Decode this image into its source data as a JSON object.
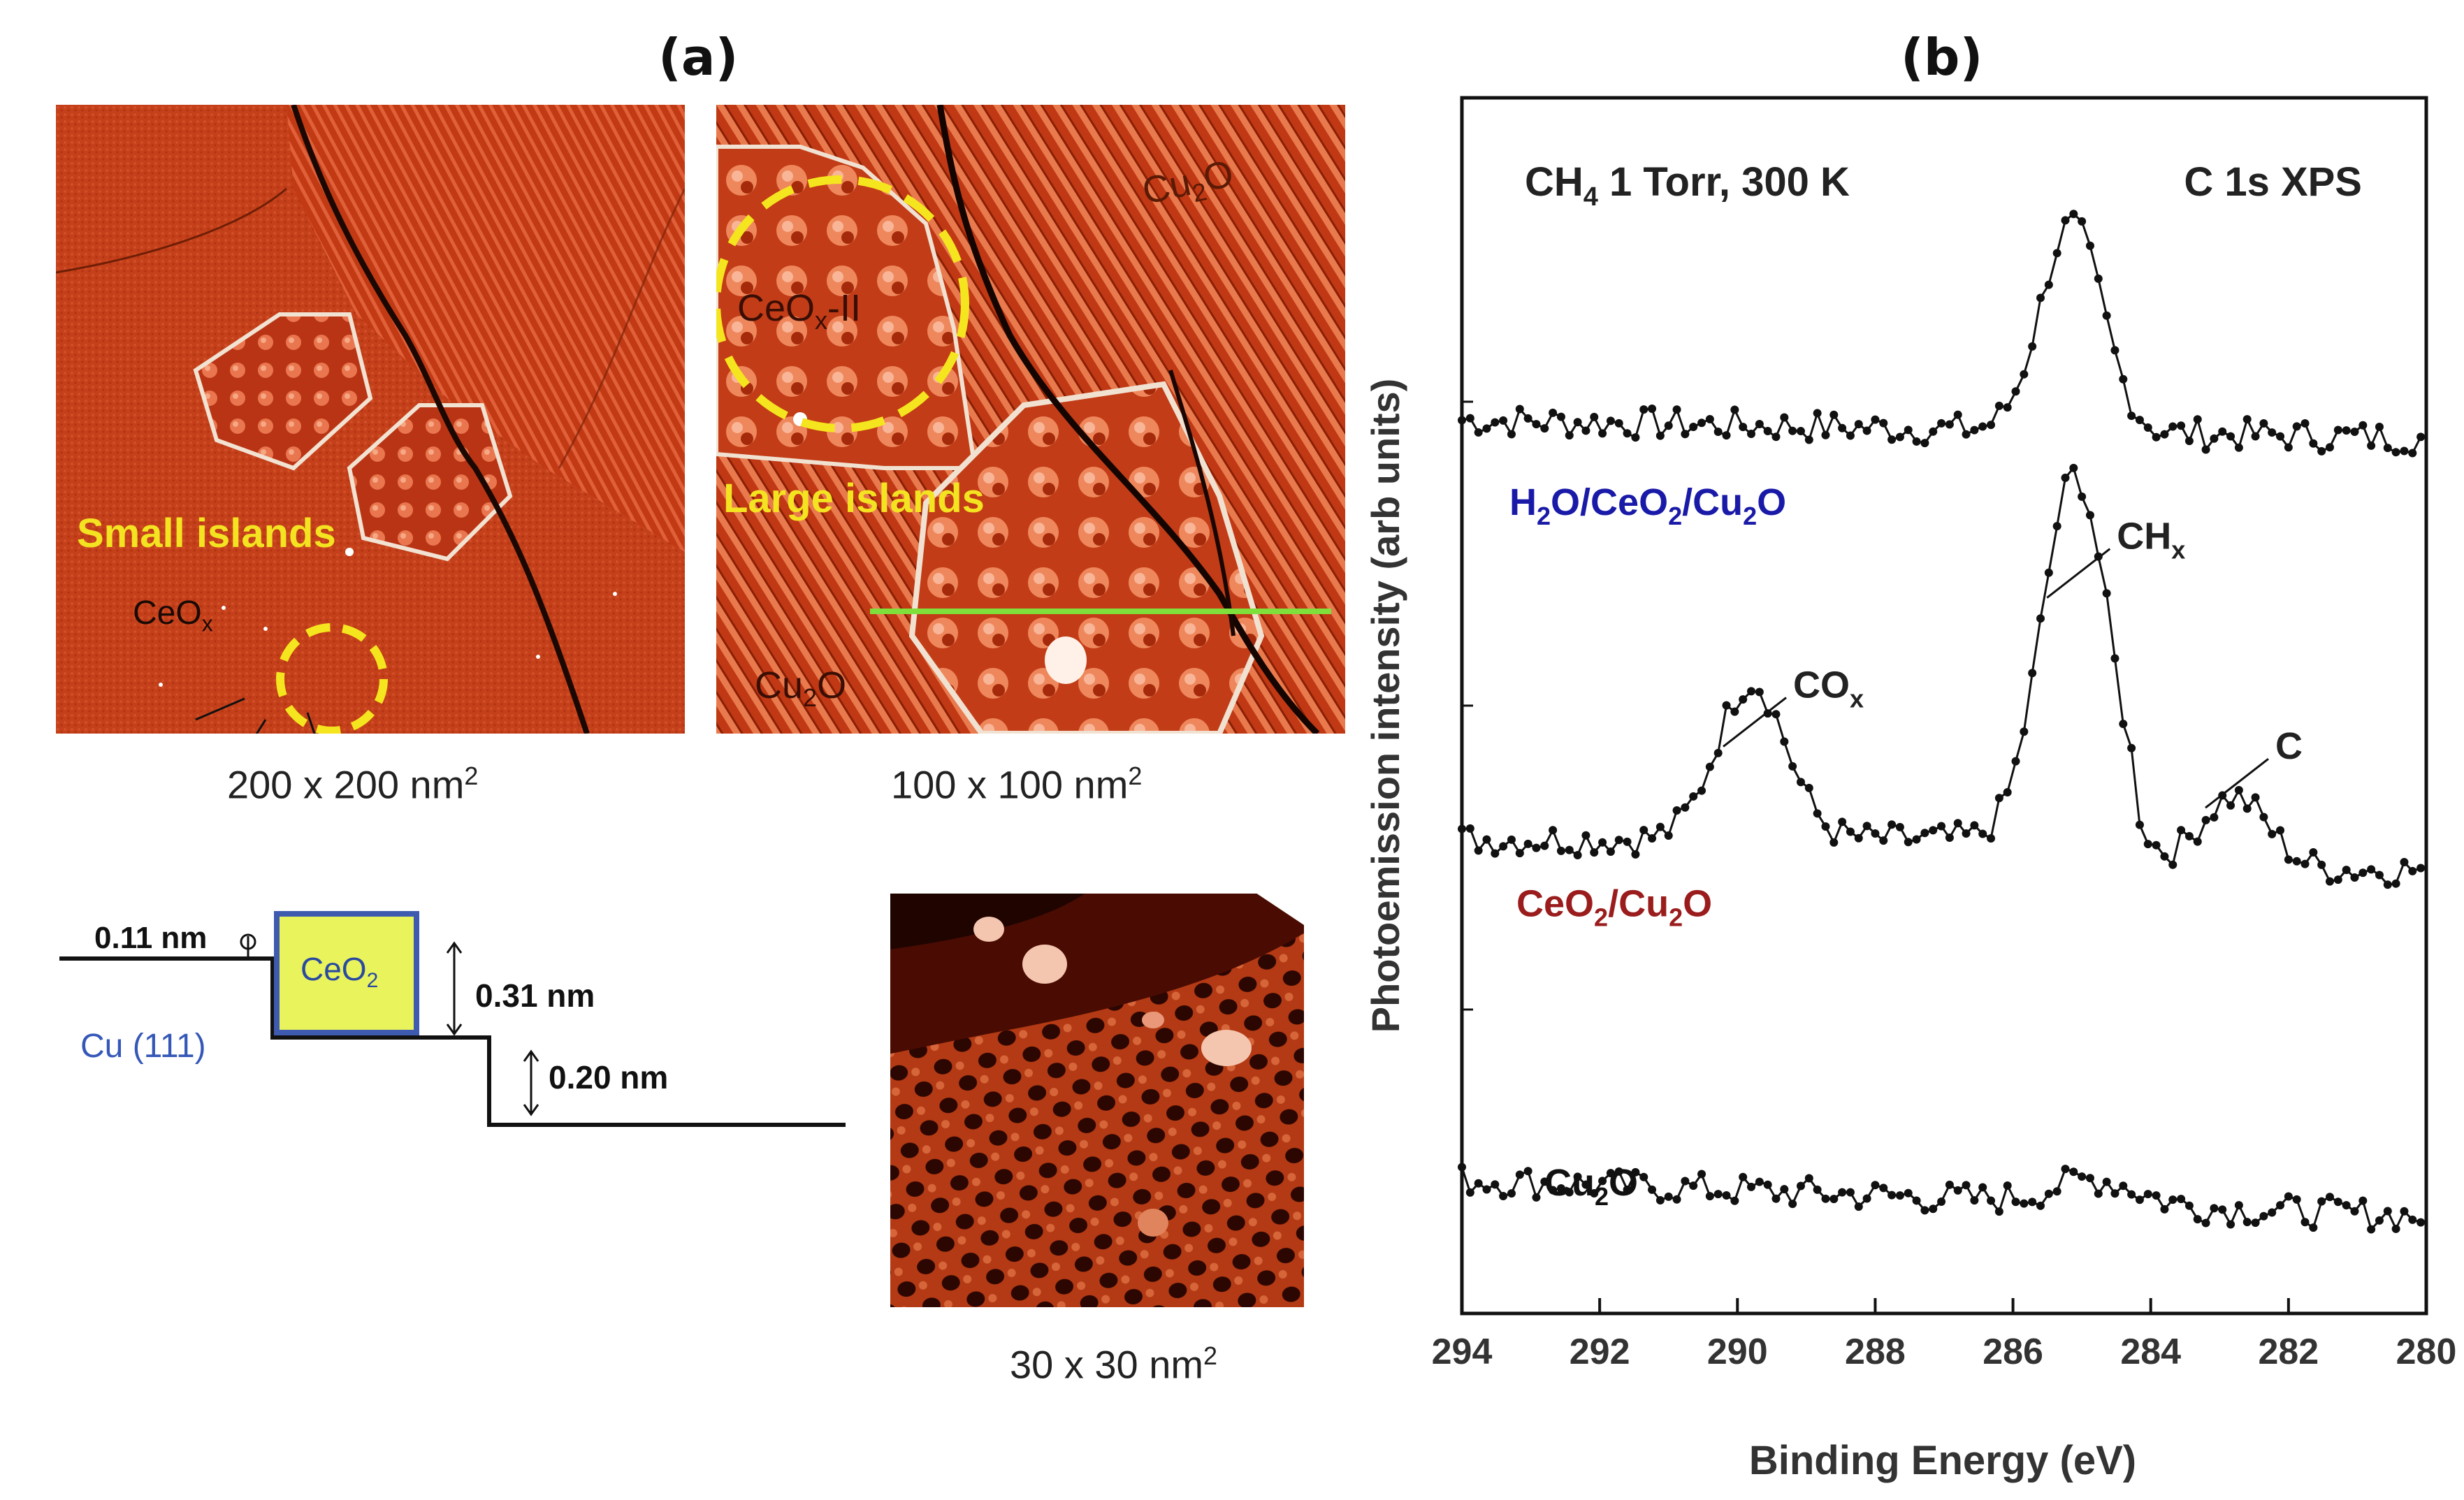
{
  "panel_a": {
    "label": "(a)",
    "image1": {
      "scale": "200 x 200 nm",
      "annotation_small": "Small islands",
      "annotation_ceo": "CeO",
      "annotation_ceo_sub": "x"
    },
    "image2": {
      "scale": "100 x 100 nm",
      "annotation_large": "Large islands",
      "annotation_ceox2": "CeO",
      "annotation_ceox2_sub": "x",
      "annotation_ceox2_suffix": "-II",
      "cu2o_top": "Cu",
      "cu2o_top_sub": "2",
      "cu2o_top_suffix": "O",
      "cu2o_bottom": "Cu",
      "cu2o_bottom_sub": "2",
      "cu2o_bottom_suffix": "O"
    },
    "image3": {
      "scale": "30 x 30 nm"
    },
    "scale_superscript": "2",
    "schematic": {
      "label_011": "0.11 nm",
      "label_031": "0.31 nm",
      "label_020": "0.20 nm",
      "box_label": "CeO",
      "box_label_sub": "2",
      "substrate": "Cu (111)"
    }
  },
  "panel_b": {
    "label": "(b)"
  },
  "chart_data": {
    "type": "line",
    "title_left": "CH₄ 1 Torr, 300 K",
    "title_left_base": "CH",
    "title_left_sub": "4",
    "title_left_rest": " 1 Torr, 300 K",
    "title_right": "C 1s  XPS",
    "xlabel": "Binding Energy (eV)",
    "ylabel": "Photoemission intensity (arb units)",
    "xlim": [
      294,
      280
    ],
    "x_reversed": true,
    "ylim": [
      0,
      100
    ],
    "xticks": [
      294,
      292,
      290,
      288,
      286,
      284,
      282,
      280
    ],
    "series": [
      {
        "name": "H2O/CeO2/Cu2O",
        "label_parts": [
          "H",
          "2",
          "O/CeO",
          "2",
          "/Cu",
          "2",
          "O"
        ],
        "color": "#1a1aa8",
        "baseline": 72,
        "peaks": [
          {
            "center": 285.15,
            "height": 17,
            "width": 0.45
          }
        ],
        "slope_start": 1.5
      },
      {
        "name": "CeO2/Cu2O",
        "label_parts": [
          "CeO",
          "2",
          "/Cu",
          "2",
          "O"
        ],
        "color": "#9a1c1c",
        "baseline": 39,
        "peaks": [
          {
            "center": 289.8,
            "height": 13,
            "width": 0.5,
            "annotation": "CO",
            "annotation_sub": "x"
          },
          {
            "center": 285.1,
            "height": 30,
            "width": 0.48,
            "annotation": "CH",
            "annotation_sub": "x"
          },
          {
            "center": 282.8,
            "height": 6,
            "width": 0.5,
            "annotation": "C"
          }
        ],
        "slope_start": 0
      },
      {
        "name": "Cu2O",
        "label_parts": [
          "Cu",
          "2",
          "O"
        ],
        "color": "#111111",
        "baseline": 8,
        "peaks": [
          {
            "center": 284.8,
            "height": 2,
            "width": 0.6
          }
        ],
        "slope_start": 3
      }
    ]
  }
}
